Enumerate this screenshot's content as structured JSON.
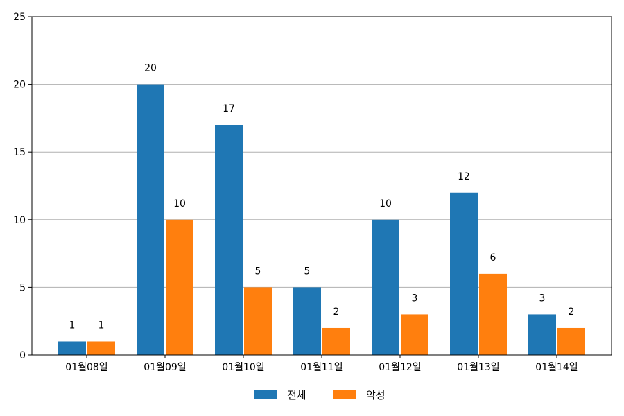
{
  "chart_data": {
    "type": "bar",
    "categories": [
      "01월08일",
      "01월09일",
      "01월10일",
      "01월11일",
      "01월12일",
      "01월13일",
      "01월14일"
    ],
    "series": [
      {
        "name": "전체",
        "values": [
          1,
          20,
          17,
          5,
          10,
          12,
          3
        ],
        "color": "#1f77b4"
      },
      {
        "name": "악성",
        "values": [
          1,
          10,
          5,
          2,
          3,
          6,
          2
        ],
        "color": "#ff7f0e"
      }
    ],
    "yticks": [
      0,
      5,
      10,
      15,
      20,
      25
    ],
    "ylim": [
      0,
      25
    ],
    "grid": "horizontal",
    "legend": "bottom-center"
  }
}
